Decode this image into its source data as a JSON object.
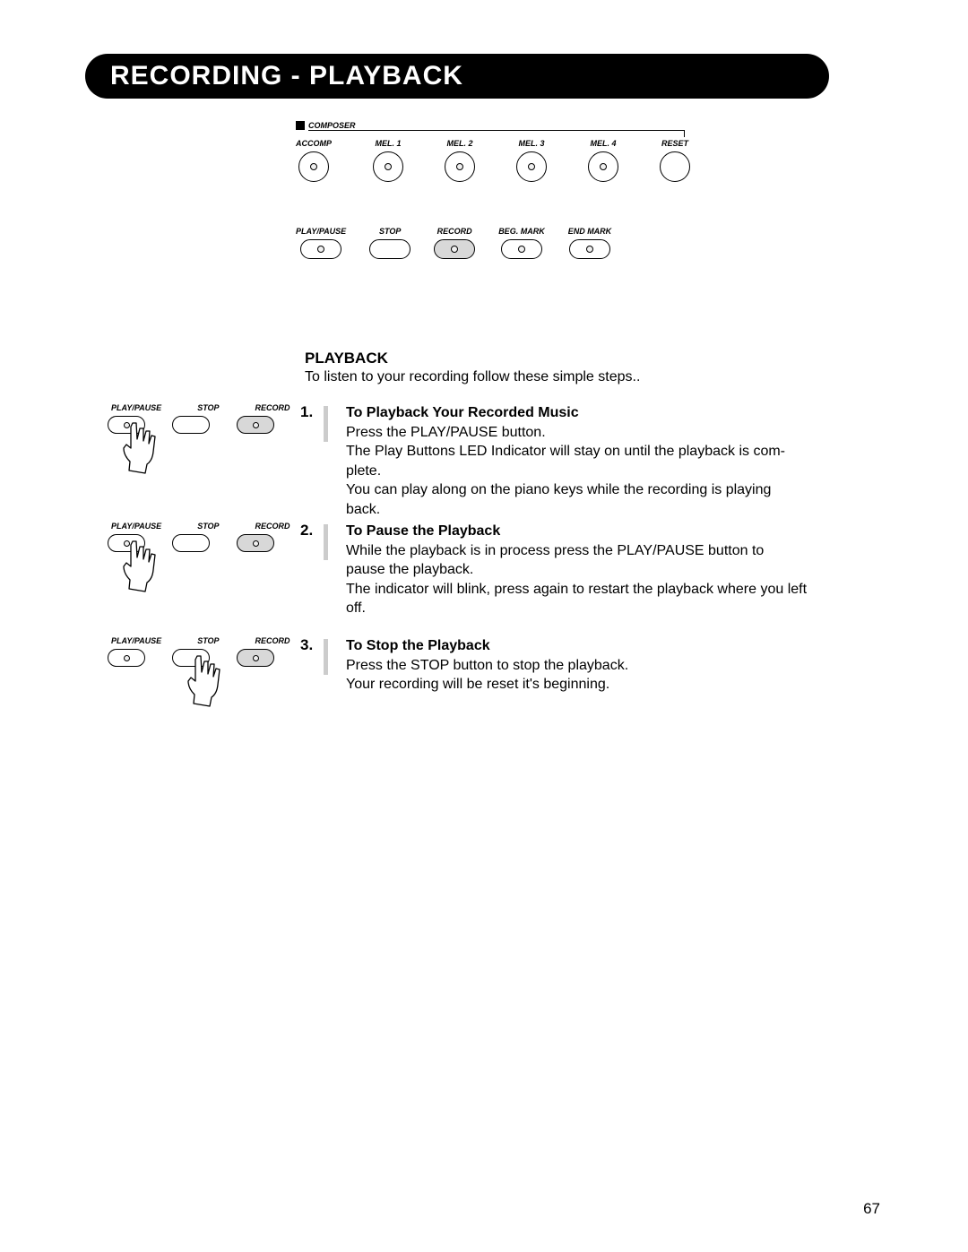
{
  "title": "RECORDING - PLAYBACK",
  "composer": {
    "header": "COMPOSER",
    "top_buttons": [
      {
        "label": "ACCOMP",
        "has_led": true
      },
      {
        "label": "MEL. 1",
        "has_led": true
      },
      {
        "label": "MEL. 2",
        "has_led": true
      },
      {
        "label": "MEL. 3",
        "has_led": true
      },
      {
        "label": "MEL. 4",
        "has_led": true
      },
      {
        "label": "RESET",
        "has_led": false
      }
    ],
    "bottom_buttons": [
      {
        "label": "PLAY/PAUSE",
        "has_led": true,
        "shaded": false
      },
      {
        "label": "STOP",
        "has_led": false,
        "shaded": false
      },
      {
        "label": "RECORD",
        "has_led": true,
        "shaded": true
      },
      {
        "label": "BEG. MARK",
        "has_led": true,
        "shaded": false
      },
      {
        "label": "END MARK",
        "has_led": true,
        "shaded": false
      }
    ]
  },
  "section_header": "PLAYBACK",
  "intro": "To listen to your recording follow these simple steps..",
  "diag_labels": {
    "play": "PLAY/PAUSE",
    "stop": "STOP",
    "record": "RECORD"
  },
  "steps": [
    {
      "num": "1.",
      "title": "To Playback Your Recorded Music",
      "lines": [
        "Press the PLAY/PAUSE button.",
        "The Play Buttons LED Indicator will stay on until the playback is com-",
        "plete.",
        "You can play along on the piano keys while the recording is playing",
        "back."
      ],
      "hand_on": 0
    },
    {
      "num": "2.",
      "title": "To Pause the Playback",
      "lines": [
        "While the playback is in process press the PLAY/PAUSE button to",
        "pause the playback.",
        "The indicator will blink, press again to restart the playback where you left",
        "off."
      ],
      "hand_on": 0
    },
    {
      "num": "3.",
      "title": "To Stop the Playback",
      "lines": [
        "Press the STOP button to stop the playback.",
        "Your recording will be reset it's beginning."
      ],
      "hand_on": 1
    }
  ],
  "page_number": "67"
}
